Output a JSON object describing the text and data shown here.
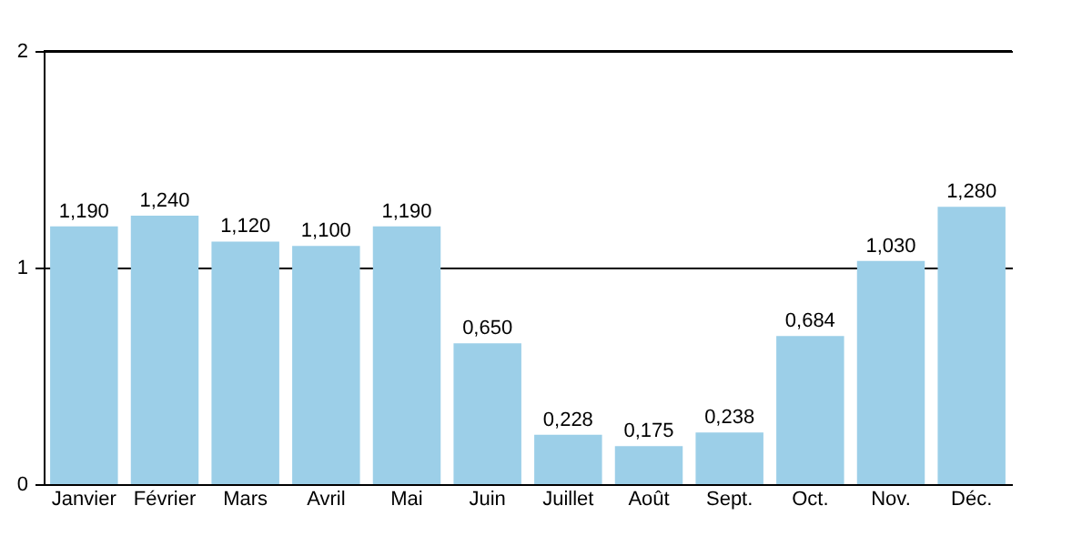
{
  "chart_data": {
    "type": "bar",
    "categories": [
      "Janvier",
      "Février",
      "Mars",
      "Avril",
      "Mai",
      "Juin",
      "Juillet",
      "Août",
      "Sept.",
      "Oct.",
      "Nov.",
      "Déc."
    ],
    "values": [
      1.19,
      1.24,
      1.12,
      1.1,
      1.19,
      0.65,
      0.228,
      0.175,
      0.238,
      0.684,
      1.03,
      1.28
    ],
    "value_labels": [
      "1,190",
      "1,240",
      "1,120",
      "1,100",
      "1,190",
      "0,650",
      "0,228",
      "0,175",
      "0,238",
      "0,684",
      "1,030",
      "1,280"
    ],
    "color": "#9ccfe8",
    "ylim": [
      0,
      2
    ],
    "yticks": [
      0,
      1,
      2
    ],
    "grid": "y"
  }
}
